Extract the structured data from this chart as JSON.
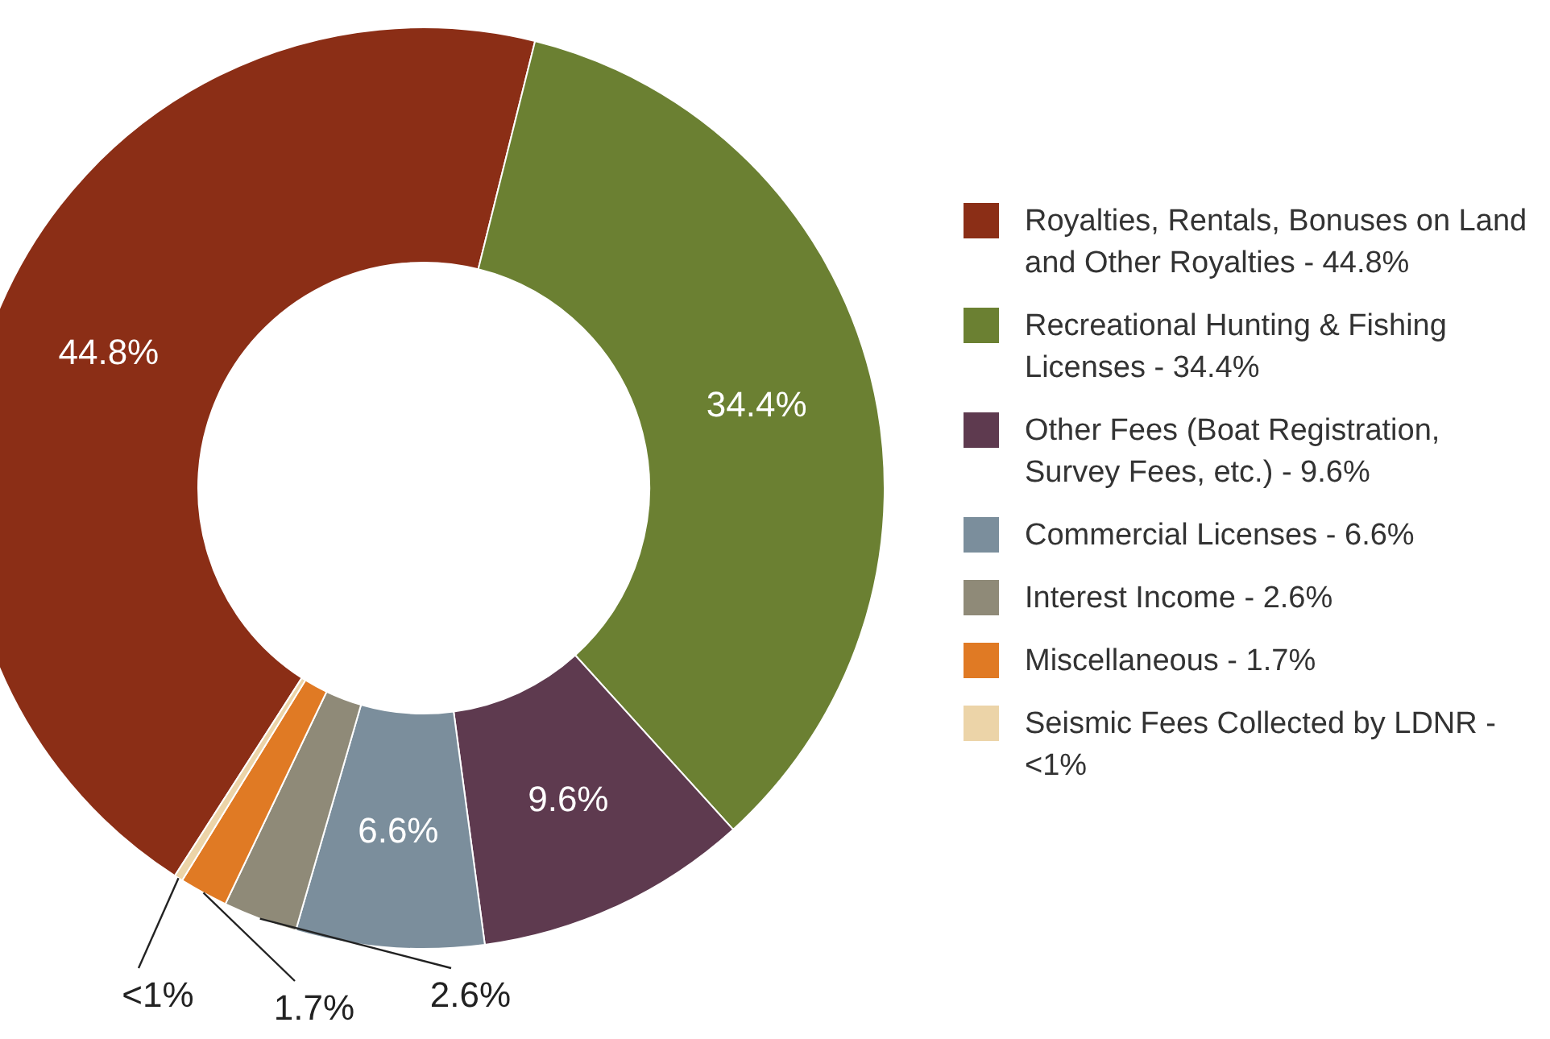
{
  "chart_data": {
    "type": "donut",
    "categories": [
      "Royalties, Rentals, Bonuses on Land and Other Royalties - 44.8%",
      "Recreational Hunting & Fishing Licenses - 34.4%",
      "Other Fees (Boat Registration, Survey Fees, etc.) - 9.6%",
      "Commercial Licenses - 6.6%",
      "Interest Income - 2.6%",
      "Miscellaneous - 1.7%",
      "Seismic Fees Collected by LDNR - <1%"
    ],
    "values": [
      44.8,
      34.4,
      9.6,
      6.6,
      2.6,
      1.7,
      0.3
    ],
    "value_labels": [
      "44.8%",
      "34.4%",
      "9.6%",
      "6.6%",
      "2.6%",
      "1.7%",
      "<1%"
    ],
    "colors": [
      "#8b2e16",
      "#6b8032",
      "#5e3a4f",
      "#7b8e9c",
      "#8f8a78",
      "#e07a24",
      "#ecd4a8"
    ],
    "legend": "right"
  }
}
